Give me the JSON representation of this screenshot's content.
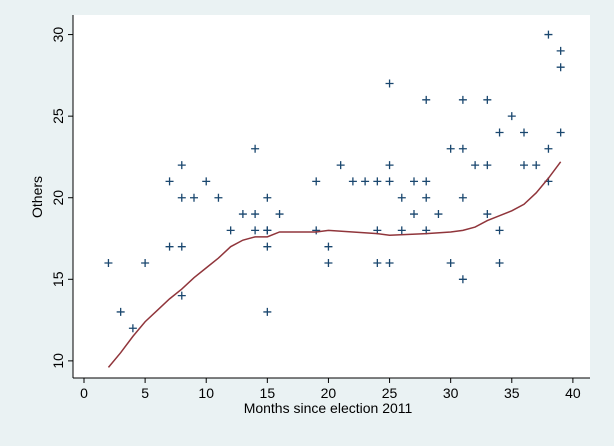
{
  "chart_data": {
    "type": "scatter",
    "xlabel": "Months since election 2011",
    "ylabel": "Others",
    "xlim": [
      -0.9,
      41.4
    ],
    "ylim": [
      8.95,
      31.2
    ],
    "xticks": [
      0,
      5,
      10,
      15,
      20,
      25,
      30,
      35,
      40
    ],
    "yticks": [
      10,
      15,
      20,
      25,
      30
    ],
    "grid": false,
    "series": [
      {
        "marker": "+",
        "color": "#1a476f",
        "x": [
          2,
          3,
          4,
          5,
          7,
          7,
          8,
          8,
          8,
          8,
          9,
          10,
          11,
          12,
          13,
          14,
          14,
          14,
          15,
          15,
          15,
          15,
          15,
          16,
          19,
          19,
          20,
          20,
          21,
          22,
          23,
          24,
          24,
          24,
          25,
          25,
          25,
          25,
          26,
          26,
          27,
          27,
          28,
          28,
          28,
          28,
          29,
          30,
          30,
          31,
          31,
          31,
          31,
          32,
          33,
          33,
          33,
          34,
          34,
          34,
          35,
          36,
          36,
          37,
          38,
          38,
          38,
          39,
          39,
          39
        ],
        "y": [
          16,
          13,
          12,
          16,
          21,
          17,
          22,
          20,
          17,
          14,
          20,
          21,
          20,
          18,
          19,
          23,
          19,
          18,
          20,
          18,
          18,
          17,
          13,
          19,
          21,
          18,
          17,
          16,
          22,
          21,
          21,
          21,
          18,
          16,
          27,
          22,
          21,
          16,
          20,
          18,
          21,
          19,
          26,
          21,
          20,
          18,
          19,
          23,
          16,
          26,
          23,
          20,
          15,
          22,
          26,
          22,
          19,
          24,
          18,
          16,
          25,
          24,
          22,
          22,
          30,
          23,
          21,
          29,
          28,
          24
        ]
      },
      {
        "marker": "line",
        "color": "#90353b",
        "x": [
          2,
          3,
          4,
          5,
          6,
          7,
          8,
          9,
          10,
          11,
          12,
          13,
          14,
          15,
          16,
          19,
          20,
          22,
          24,
          25,
          28,
          30,
          31,
          32,
          33,
          34,
          35,
          36,
          37,
          38,
          39
        ],
        "y": [
          9.6,
          10.5,
          11.5,
          12.4,
          13.1,
          13.8,
          14.4,
          15.1,
          15.7,
          16.3,
          17,
          17.4,
          17.6,
          17.6,
          17.9,
          17.9,
          18,
          17.9,
          17.8,
          17.7,
          17.8,
          17.9,
          18,
          18.2,
          18.6,
          18.9,
          19.2,
          19.6,
          20.3,
          21.2,
          22.2
        ]
      }
    ]
  }
}
